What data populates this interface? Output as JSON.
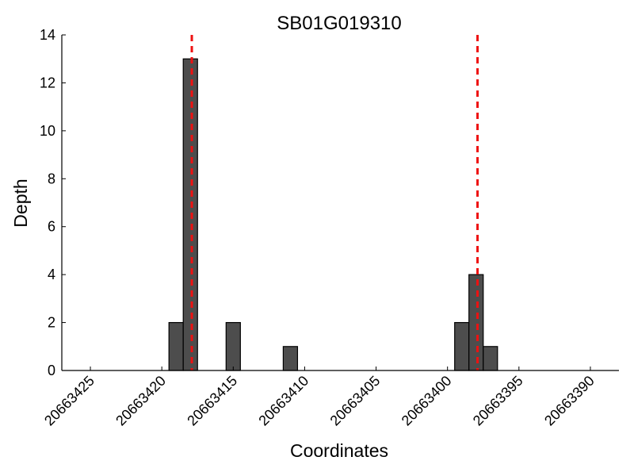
{
  "chart_data": {
    "type": "bar",
    "title": "SB01G019310",
    "xlabel": "Coordinates",
    "ylabel": "Depth",
    "xaxis_reversed": true,
    "xlim": [
      20663427,
      20663388
    ],
    "ylim": [
      0,
      14
    ],
    "x_ticks": [
      20663425,
      20663420,
      20663415,
      20663410,
      20663405,
      20663400,
      20663395,
      20663390
    ],
    "y_ticks": [
      0,
      2,
      4,
      6,
      8,
      10,
      12,
      14
    ],
    "bar_color": "#4d4d4d",
    "bar_edge_color": "#000000",
    "bars": [
      {
        "x": 20663419,
        "value": 2
      },
      {
        "x": 20663418,
        "value": 13
      },
      {
        "x": 20663415,
        "value": 2
      },
      {
        "x": 20663411,
        "value": 1
      },
      {
        "x": 20663399,
        "value": 2
      },
      {
        "x": 20663398,
        "value": 4
      },
      {
        "x": 20663397,
        "value": 1
      }
    ],
    "reference_lines": [
      20663417.9,
      20663397.9
    ],
    "reference_line_color": "#ee1111",
    "reference_line_style": "dashed",
    "grid": false,
    "legend": false
  }
}
